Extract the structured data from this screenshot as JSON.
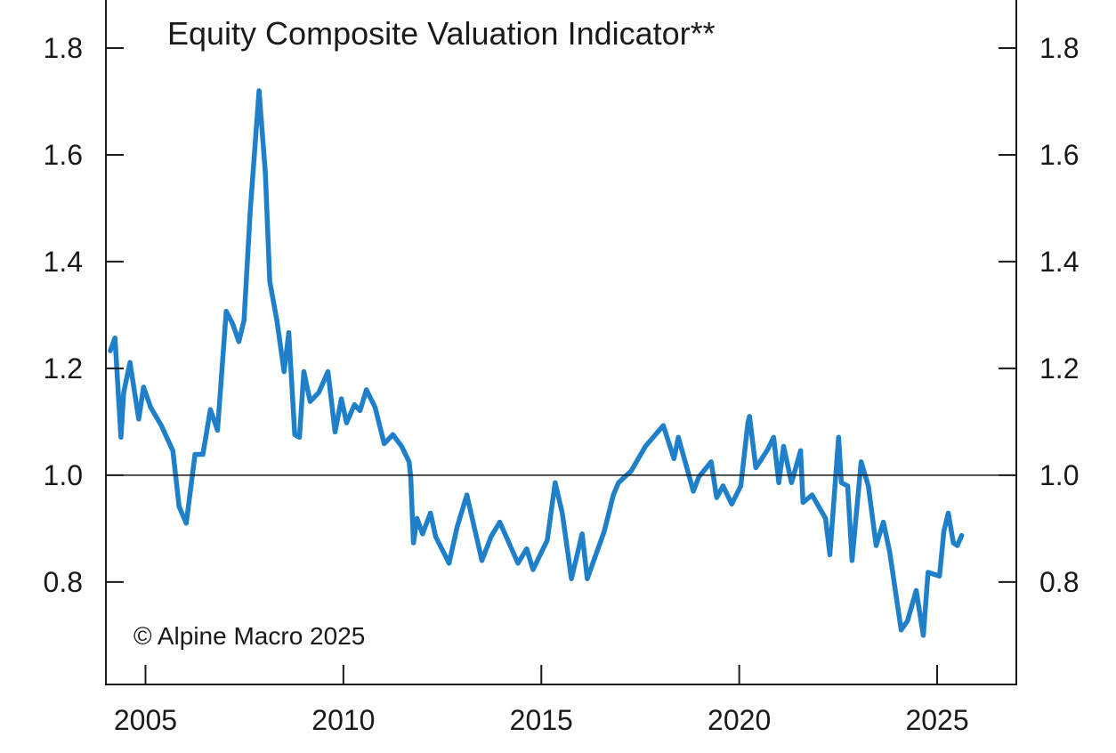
{
  "chart_data": {
    "type": "line",
    "title": "Equity Composite Valuation Indicator**",
    "annotation": "© Alpine Macro 2025",
    "xlabel": "",
    "ylabel": "",
    "xlim": [
      2004.0,
      2027.0
    ],
    "ylim": [
      0.608,
      1.89
    ],
    "x_ticks": [
      2005,
      2010,
      2015,
      2020,
      2025
    ],
    "x_tick_labels": [
      "2005",
      "2010",
      "2015",
      "2020",
      "2025"
    ],
    "y_ticks": [
      0.8,
      1.0,
      1.2,
      1.4,
      1.6,
      1.8
    ],
    "y_tick_labels": [
      "0.8",
      "1.0",
      "1.2",
      "1.4",
      "1.6",
      "1.8"
    ],
    "reference_line": 1.0,
    "grid": false,
    "colors": {
      "series": "#1f80c9",
      "axis": "#1a1a1a"
    },
    "series": [
      {
        "name": "Equity Composite Valuation Indicator",
        "x": [
          2004.11,
          2004.23,
          2004.38,
          2004.45,
          2004.61,
          2004.83,
          2004.95,
          2005.13,
          2005.4,
          2005.69,
          2005.85,
          2006.03,
          2006.25,
          2006.45,
          2006.64,
          2006.82,
          2007.04,
          2007.2,
          2007.36,
          2007.49,
          2007.65,
          2007.87,
          2008.03,
          2008.14,
          2008.32,
          2008.5,
          2008.62,
          2008.77,
          2008.89,
          2009.0,
          2009.16,
          2009.38,
          2009.61,
          2009.79,
          2009.95,
          2010.08,
          2010.28,
          2010.42,
          2010.58,
          2010.8,
          2011.03,
          2011.25,
          2011.47,
          2011.66,
          2011.7,
          2011.77,
          2011.86,
          2012.0,
          2012.2,
          2012.33,
          2012.67,
          2012.87,
          2013.12,
          2013.5,
          2013.73,
          2013.95,
          2014.41,
          2014.63,
          2014.79,
          2015.15,
          2015.35,
          2015.53,
          2015.76,
          2016.03,
          2016.16,
          2016.59,
          2016.82,
          2016.95,
          2017.27,
          2017.63,
          2018.08,
          2018.35,
          2018.46,
          2018.84,
          2018.98,
          2019.29,
          2019.43,
          2019.59,
          2019.81,
          2020.04,
          2020.22,
          2020.26,
          2020.42,
          2020.71,
          2020.87,
          2021.0,
          2021.12,
          2021.32,
          2021.55,
          2021.61,
          2021.84,
          2022.18,
          2022.29,
          2022.51,
          2022.58,
          2022.74,
          2022.85,
          2023.08,
          2023.26,
          2023.46,
          2023.64,
          2023.8,
          2024.09,
          2024.25,
          2024.47,
          2024.65,
          2024.77,
          2025.06,
          2025.17,
          2025.28,
          2025.41,
          2025.51,
          2025.62
        ],
        "y": [
          1.233,
          1.257,
          1.071,
          1.155,
          1.211,
          1.105,
          1.165,
          1.127,
          1.093,
          1.046,
          0.941,
          0.91,
          1.039,
          1.039,
          1.123,
          1.084,
          1.307,
          1.284,
          1.25,
          1.29,
          1.498,
          1.72,
          1.565,
          1.363,
          1.29,
          1.194,
          1.267,
          1.076,
          1.071,
          1.194,
          1.138,
          1.155,
          1.194,
          1.081,
          1.143,
          1.098,
          1.132,
          1.121,
          1.16,
          1.127,
          1.059,
          1.076,
          1.054,
          1.025,
          0.997,
          0.873,
          0.919,
          0.89,
          0.929,
          0.885,
          0.835,
          0.902,
          0.963,
          0.84,
          0.885,
          0.912,
          0.835,
          0.862,
          0.823,
          0.878,
          0.986,
          0.929,
          0.806,
          0.89,
          0.806,
          0.895,
          0.963,
          0.986,
          1.008,
          1.054,
          1.093,
          1.031,
          1.071,
          0.97,
          0.997,
          1.025,
          0.958,
          0.98,
          0.946,
          0.98,
          1.098,
          1.11,
          1.014,
          1.047,
          1.071,
          0.986,
          1.054,
          0.986,
          1.046,
          0.949,
          0.963,
          0.919,
          0.851,
          1.071,
          0.986,
          0.98,
          0.84,
          1.025,
          0.98,
          0.868,
          0.912,
          0.856,
          0.71,
          0.727,
          0.784,
          0.7,
          0.818,
          0.811,
          0.895,
          0.929,
          0.873,
          0.868,
          0.887
        ]
      }
    ]
  }
}
